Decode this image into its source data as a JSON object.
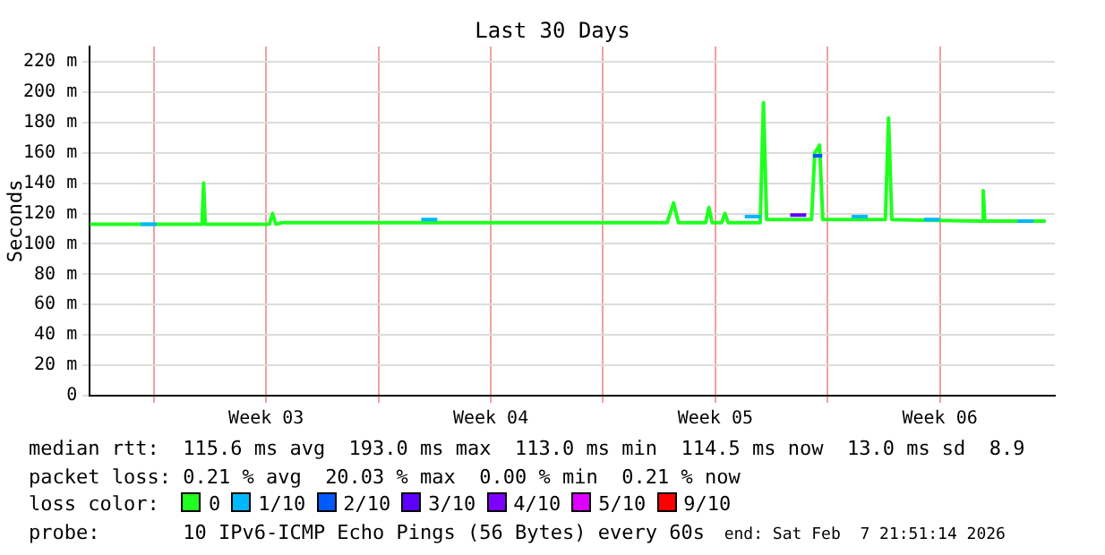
{
  "chart_data": {
    "type": "line",
    "title": "Last 30 Days",
    "ylabel": "Seconds",
    "xlim": [
      "2026-01-09T00:00",
      "2026-02-08T02:00"
    ],
    "xticks": [
      {
        "value": "2026-01-11",
        "label": null
      },
      {
        "value": "2026-01-14T12:00",
        "label": "Week 03"
      },
      {
        "value": "2026-01-18",
        "label": null
      },
      {
        "value": "2026-01-21T12:00",
        "label": "Week 04"
      },
      {
        "value": "2026-01-25",
        "label": null
      },
      {
        "value": "2026-01-28T12:00",
        "label": "Week 05"
      },
      {
        "value": "2026-02-01",
        "label": null
      },
      {
        "value": "2026-02-04T12:00",
        "label": "Week 06"
      }
    ],
    "ylim": [
      0,
      230
    ],
    "yticks": [
      {
        "value": 0,
        "label": "0"
      },
      {
        "value": 20,
        "label": "20 m"
      },
      {
        "value": 40,
        "label": "40 m"
      },
      {
        "value": 60,
        "label": "60 m"
      },
      {
        "value": 80,
        "label": "80 m"
      },
      {
        "value": 100,
        "label": "100 m"
      },
      {
        "value": 120,
        "label": "120 m"
      },
      {
        "value": 140,
        "label": "140 m"
      },
      {
        "value": 160,
        "label": "160 m"
      },
      {
        "value": 180,
        "label": "180 m"
      },
      {
        "value": 200,
        "label": "200 m"
      },
      {
        "value": 220,
        "label": "220 m"
      }
    ],
    "grid": true,
    "legend": "bottom",
    "legend_title": "loss color:",
    "marker": "none",
    "line_style": "solid",
    "series": [
      {
        "name": "0",
        "color": "#20ff20",
        "x": [
          "2026-01-09T00:00",
          "2026-01-12T12:00",
          "2026-01-12T13:12",
          "2026-01-12T14:24",
          "2026-01-14T14:24",
          "2026-01-14T16:48",
          "2026-01-14T19:12",
          "2026-01-15T00:00",
          "2026-01-27T00:00",
          "2026-01-27T04:48",
          "2026-01-27T08:24",
          "2026-01-28T04:48",
          "2026-01-28T07:12",
          "2026-01-28T09:36",
          "2026-01-28T16:48",
          "2026-01-28T19:12",
          "2026-01-28T21:36",
          "2026-01-29T21:36",
          "2026-01-30T00:00",
          "2026-01-30T02:24",
          "2026-01-31T12:00",
          "2026-01-31T14:24",
          "2026-01-31T18:00",
          "2026-01-31T20:24",
          "2026-02-02T19:12",
          "2026-02-02T21:36",
          "2026-02-03T00:00",
          "2026-02-05T19:12",
          "2026-02-05T20:24",
          "2026-02-05T21:36",
          "2026-02-07T19:12"
        ],
        "values": [
          113,
          113,
          140,
          113,
          113,
          120,
          113,
          114,
          114,
          127,
          114,
          114,
          124,
          114,
          114,
          120,
          114,
          114,
          193,
          116,
          116,
          160,
          165,
          116,
          116,
          183,
          116,
          115,
          135,
          115,
          115
        ]
      },
      {
        "name": "1/10",
        "color": "#00b8ff",
        "x": [
          "2026-01-10T14:00",
          "2026-01-11T02:00",
          "2026-01-15T00:00",
          "2026-01-19T08:00",
          "2026-01-19T20:00",
          "2026-01-25T00:00",
          "2026-01-29T10:00",
          "2026-01-29T22:00",
          "2026-01-31T00:00",
          "2026-02-01T18:00",
          "2026-02-02T06:00",
          "2026-02-03T00:00",
          "2026-02-04T00:00",
          "2026-02-04T12:00",
          "2026-02-06T00:00",
          "2026-02-06T22:00",
          "2026-02-07T10:00"
        ],
        "values": [
          113,
          113,
          null,
          116,
          116,
          null,
          118,
          118,
          null,
          118,
          118,
          null,
          116,
          116,
          null,
          115,
          115
        ]
      },
      {
        "name": "2/10",
        "color": "#0059ff",
        "x": [
          "2026-01-31T13:00",
          "2026-01-31T20:00"
        ],
        "values": [
          158,
          158
        ]
      },
      {
        "name": "3/10",
        "color": "#5e00ff",
        "x": [
          "2026-01-30T20:00",
          "2026-01-31T08:00"
        ],
        "values": [
          119,
          119
        ]
      },
      {
        "name": "4/10",
        "color": "#7e00ff"
      },
      {
        "name": "5/10",
        "color": "#dd00ff"
      },
      {
        "name": "9/10",
        "color": "#ff0000"
      }
    ],
    "annotations": [
      "median rtt:  115.6 ms avg  193.0 ms max  113.0 ms min  114.5 ms now  13.0 ms sd  8.9",
      "packet loss: 0.21 % avg  20.03 % max  0.00 % min  0.21 % now",
      "probe:       10 IPv6-ICMP Echo Pings (56 Bytes) every 60s",
      "end: Sat Feb  7 21:51:14 2026"
    ]
  }
}
